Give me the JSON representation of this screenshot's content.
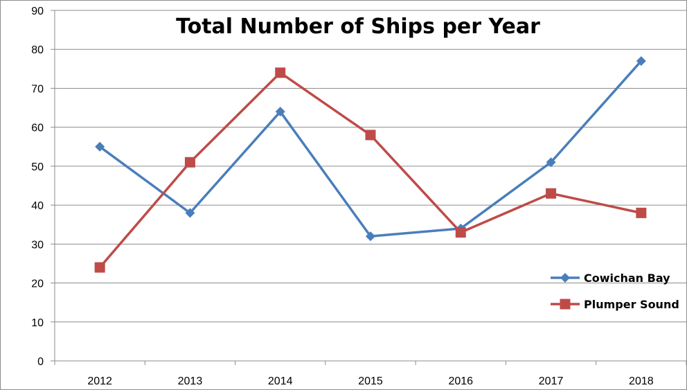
{
  "chart_data": {
    "type": "line",
    "title": "Total Number of Ships per Year",
    "categories": [
      "2012",
      "2013",
      "2014",
      "2015",
      "2016",
      "2017",
      "2018"
    ],
    "series": [
      {
        "name": "Cowichan Bay",
        "values": [
          55,
          38,
          64,
          32,
          34,
          51,
          77
        ],
        "color": "#4A7EBB",
        "marker": "diamond"
      },
      {
        "name": "Plumper Sound",
        "values": [
          24,
          51,
          74,
          58,
          33,
          43,
          38
        ],
        "color": "#BE4B48",
        "marker": "square"
      }
    ],
    "ylim": [
      0,
      90
    ],
    "yticks": [
      "0",
      "10",
      "20",
      "30",
      "40",
      "50",
      "60",
      "70",
      "80",
      "90"
    ],
    "grid": true,
    "legend": "right"
  }
}
